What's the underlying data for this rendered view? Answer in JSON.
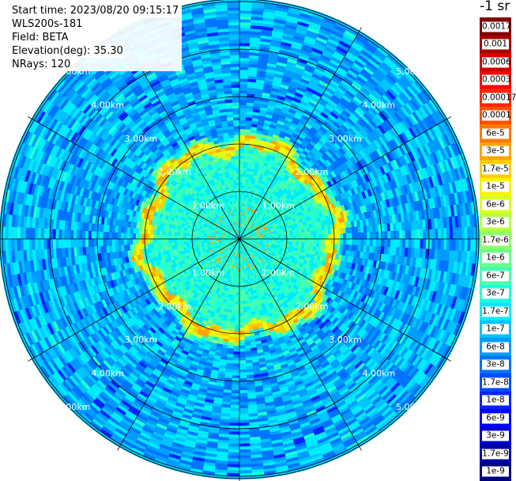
{
  "info": {
    "start_time": "Start time: 2023/08/20 09:15:17",
    "site": "WLS200s-181",
    "field": "Field: BETA",
    "elevation": "Elevation(deg): 35.30",
    "nrays": "NRays: 120"
  },
  "colorbar": {
    "title": "-1 sr",
    "labels": [
      "0.0017",
      "0.001",
      "0.0006",
      "0.0003",
      "0.00017",
      "0.0001",
      "6e-5",
      "3e-5",
      "1.7e-5",
      "1e-5",
      "6e-6",
      "3e-6",
      "1.7e-6",
      "1e-6",
      "6e-7",
      "3e-7",
      "1.7e-7",
      "1e-7",
      "6e-8",
      "3e-8",
      "1.7e-8",
      "1e-8",
      "6e-9",
      "3e-9",
      "1.7e-9",
      "1e-9"
    ],
    "colors": [
      "#7f0000",
      "#a80000",
      "#d20000",
      "#fc0000",
      "#ff2600",
      "#ff5000",
      "#ff7a00",
      "#ffa300",
      "#ffcd00",
      "#f7f500",
      "#d8ff1f",
      "#b4ff43",
      "#8fff68",
      "#6aff8c",
      "#46ffb1",
      "#21ffd5",
      "#00ecfd",
      "#00c3ff",
      "#009bff",
      "#0073ff",
      "#004bff",
      "#0023ff",
      "#0000fa",
      "#0000d1",
      "#0000a8",
      "#00007f"
    ]
  },
  "chart_data": {
    "type": "heatmap",
    "projection": "polar-ppi",
    "field": "BETA",
    "unit": "-1 sr",
    "rays": 120,
    "elevation_deg": 35.3,
    "range_rings_km": [
      1.0,
      2.0,
      3.0,
      4.0,
      5.0
    ],
    "ring_labels": [
      "1.00km",
      "2.00km",
      "3.00km",
      "4.00km",
      "5.00km"
    ],
    "spokes_deg": [
      0,
      30,
      60,
      90,
      120,
      150,
      180,
      210,
      240,
      270,
      300,
      330
    ],
    "max_range_km": 5.0,
    "background_level": "1e-7",
    "inner_disk_level": "3e-7",
    "feature_ring_km": 2.0,
    "feature_ring_level": "1e-5",
    "feature_ring_peak_level": "3e-5",
    "scale": "log",
    "color_range": [
      "1e-9",
      "0.0017"
    ]
  }
}
